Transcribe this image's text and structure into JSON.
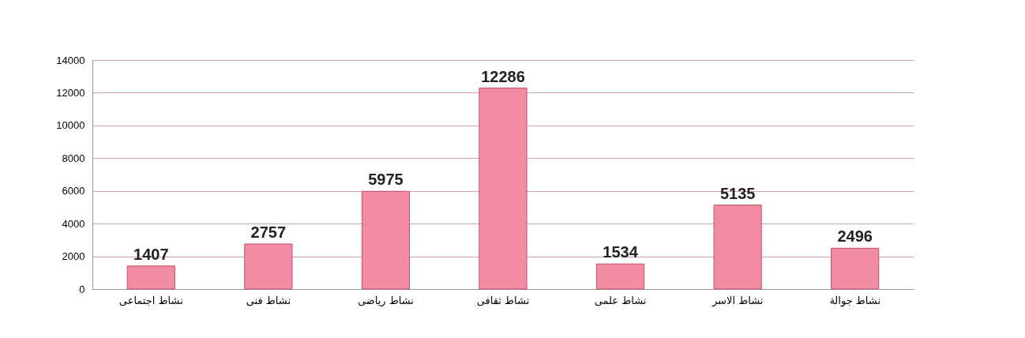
{
  "chart_data": {
    "type": "bar",
    "categories": [
      "نشاط اجتماعى",
      "نشاط فنى",
      "نشاط رياضى",
      "نشاط ثقافى",
      "نشاط علمى",
      "نشاط الاسر",
      "نشاط جوالة"
    ],
    "values": [
      1407,
      2757,
      5975,
      12286,
      1534,
      5135,
      2496
    ],
    "color": "#f28ca2",
    "ylim": [
      0,
      14000
    ],
    "yticks": [
      0,
      2000,
      4000,
      6000,
      8000,
      10000,
      12000,
      14000
    ],
    "grid": "y",
    "data_labels": true
  }
}
